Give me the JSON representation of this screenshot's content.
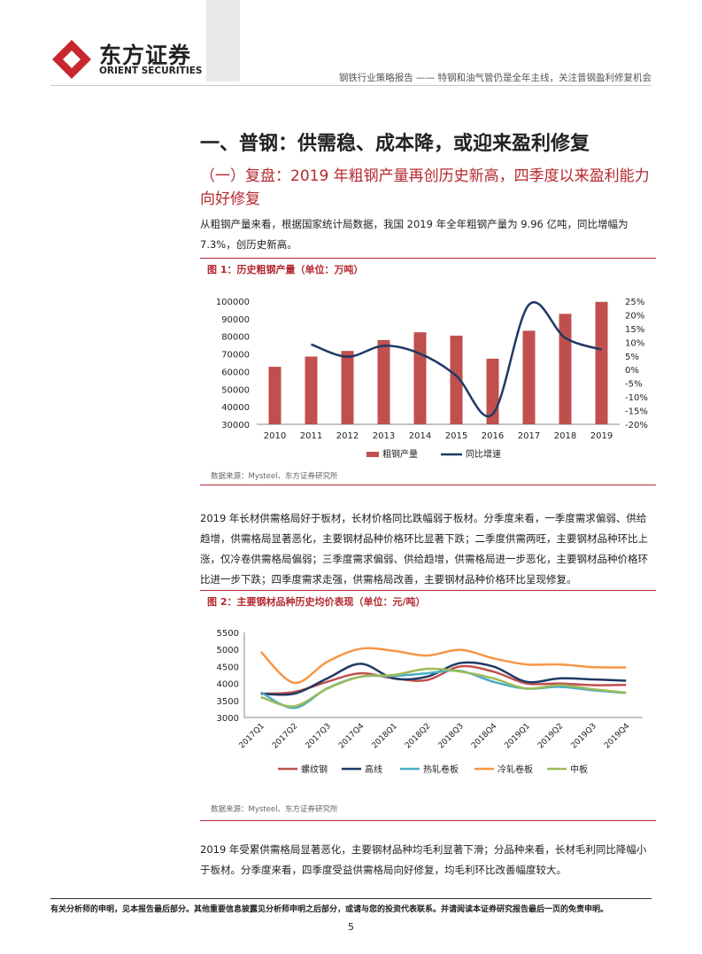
{
  "header": {
    "brand_cn": "东方证券",
    "brand_en": "ORIENT SECURITIES",
    "report_title": "钢铁行业策略报告 —— 特钢和油气管仍是全年主线，关注普钢盈利修复机会"
  },
  "section": {
    "h1": "一、普钢：供需稳、成本降，或迎来盈利修复",
    "h2": "（一）复盘：2019 年粗钢产量再创历史新高，四季度以来盈利能力向好修复",
    "para1": "从粗钢产量来看，根据国家统计局数据，我国 2019 年全年粗钢产量为 9.96 亿吨，同比增幅为 7.3%，创历史新高。",
    "para2": "2019 年长材供需格局好于板材，长材价格同比跌幅弱于板材。分季度来看，一季度需求偏弱、供给趋增，供需格局显著恶化，主要钢材品种价格环比显著下跌；二季度供需两旺，主要钢材品种环比上涨，仅冷卷供需格局偏弱；三季度需求偏弱、供给趋增，供需格局进一步恶化，主要钢材品种价格环比进一步下跌；四季度需求走强，供需格局改善，主要钢材品种价格环比呈现修复。",
    "para3": "2019 年受累供需格局显著恶化，主要钢材品种均毛利显著下滑；分品种来看，长材毛利同比降幅小于板材。分季度来看，四季度受益供需格局向好修复，均毛利环比改善幅度较大。"
  },
  "figure1": {
    "title": "图 1：历史粗钢产量（单位：万吨）",
    "source": "数据来源：Mysteel、东方证券研究所"
  },
  "figure2": {
    "title": "图 2：主要钢材品种历史均价表现（单位：元/吨）",
    "source": "数据来源：Mysteel、东方证券研究所"
  },
  "footer": {
    "disclaimer": "有关分析师的申明，见本报告最后部分。其他重要信息披露见分析师申明之后部分，或请与您的投资代表联系。并请阅读本证券研究报告最后一页的免责申明。",
    "page": "5"
  },
  "colors": {
    "brand_red": "#b5292f",
    "bar_red": "#c0504d",
    "line_navy": "#1f3864"
  },
  "chart_data": [
    {
      "type": "bar",
      "categories": [
        "2010",
        "2011",
        "2012",
        "2013",
        "2014",
        "2015",
        "2016",
        "2017",
        "2018",
        "2019"
      ],
      "series": [
        {
          "name": "粗钢产量",
          "type": "bar",
          "axis": "left",
          "values": [
            62700,
            68500,
            71700,
            77900,
            82300,
            80400,
            67300,
            83200,
            92800,
            99600
          ]
        },
        {
          "name": "同比增速",
          "type": "line",
          "axis": "right",
          "values": [
            null,
            9.2,
            4.7,
            8.7,
            5.8,
            -2.3,
            -16.3,
            23.7,
            11.6,
            7.3
          ]
        }
      ],
      "ylim_left": [
        30000,
        100000
      ],
      "yticks_left": [
        "30000",
        "40000",
        "50000",
        "60000",
        "70000",
        "80000",
        "90000",
        "100000"
      ],
      "ylim_right": [
        -20,
        25
      ],
      "yticks_right": [
        "-20%",
        "-15%",
        "-10%",
        "-5%",
        "0%",
        "5%",
        "10%",
        "15%",
        "20%",
        "25%"
      ],
      "legend_position": "bottom"
    },
    {
      "type": "line",
      "categories": [
        "2017Q1",
        "2017Q2",
        "2017Q3",
        "2017Q4",
        "2018Q1",
        "2018Q2",
        "2018Q3",
        "2018Q4",
        "2019Q1",
        "2019Q2",
        "2019Q3",
        "2019Q4"
      ],
      "series": [
        {
          "name": "螺纹钢",
          "color": "#c0504d",
          "values": [
            3700,
            3750,
            4050,
            4300,
            4150,
            4100,
            4500,
            4350,
            4000,
            4000,
            3950,
            3960
          ]
        },
        {
          "name": "高线",
          "color": "#1f3864",
          "values": [
            3700,
            3700,
            4150,
            4580,
            4150,
            4200,
            4600,
            4500,
            4050,
            4150,
            4120,
            4080
          ]
        },
        {
          "name": "热轧卷板",
          "color": "#4bacc6",
          "values": [
            3740,
            3280,
            3860,
            4200,
            4220,
            4300,
            4370,
            4050,
            3850,
            3900,
            3800,
            3720
          ]
        },
        {
          "name": "冷轧卷板",
          "color": "#f79646",
          "values": [
            4930,
            4020,
            4640,
            5020,
            4960,
            4820,
            4990,
            4740,
            4560,
            4560,
            4480,
            4470
          ]
        },
        {
          "name": "中板",
          "color": "#9bbb59",
          "values": [
            3600,
            3330,
            3850,
            4200,
            4250,
            4430,
            4350,
            4150,
            3850,
            3950,
            3830,
            3730
          ]
        }
      ],
      "ylim": [
        3000,
        5500
      ],
      "yticks": [
        "3000",
        "3500",
        "4000",
        "4500",
        "5000",
        "5500"
      ],
      "legend_position": "bottom"
    }
  ]
}
